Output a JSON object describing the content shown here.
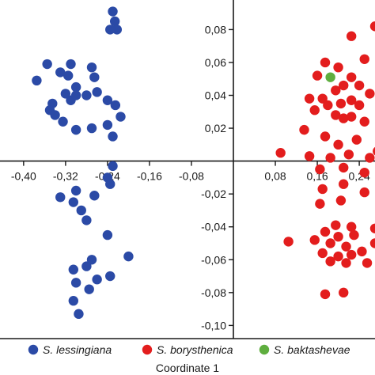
{
  "chart_data": {
    "type": "scatter",
    "title": "",
    "xlabel": "Coordinate 1",
    "ylabel": "",
    "xlim": [
      -0.445,
      0.27
    ],
    "ylim": [
      -0.108,
      0.098
    ],
    "grid": false,
    "legend_position": "bottom",
    "x_ticks": [
      -0.4,
      -0.32,
      -0.24,
      -0.16,
      -0.08,
      0.08,
      0.16,
      0.24
    ],
    "x_tick_labels": [
      "-0,40",
      "-0,32",
      "-0,24",
      "-0,16",
      "-0,08",
      "0,08",
      "0,16",
      "0,24"
    ],
    "y_ticks": [
      0.08,
      0.06,
      0.04,
      0.02,
      -0.02,
      -0.04,
      -0.06,
      -0.08,
      -0.1
    ],
    "y_tick_labels": [
      "0,08",
      "0,06",
      "0,04",
      "0,02",
      "-0,02",
      "-0,04",
      "-0,06",
      "-0,08",
      "-0,10"
    ],
    "series": [
      {
        "name": "S. lessingiana",
        "color": "#2b4aa6",
        "points": [
          [
            -0.23,
            0.091
          ],
          [
            -0.226,
            0.085
          ],
          [
            -0.222,
            0.08
          ],
          [
            -0.235,
            0.08
          ],
          [
            -0.355,
            0.059
          ],
          [
            -0.33,
            0.054
          ],
          [
            -0.31,
            0.059
          ],
          [
            -0.315,
            0.052
          ],
          [
            -0.3,
            0.045
          ],
          [
            -0.27,
            0.057
          ],
          [
            -0.265,
            0.051
          ],
          [
            -0.375,
            0.049
          ],
          [
            -0.28,
            0.04
          ],
          [
            -0.345,
            0.035
          ],
          [
            -0.32,
            0.041
          ],
          [
            -0.31,
            0.037
          ],
          [
            -0.3,
            0.04
          ],
          [
            -0.26,
            0.042
          ],
          [
            -0.24,
            0.037
          ],
          [
            -0.225,
            0.034
          ],
          [
            -0.35,
            0.031
          ],
          [
            -0.34,
            0.028
          ],
          [
            -0.325,
            0.024
          ],
          [
            -0.27,
            0.02
          ],
          [
            -0.24,
            0.022
          ],
          [
            -0.215,
            0.027
          ],
          [
            -0.3,
            0.019
          ],
          [
            -0.23,
            0.015
          ],
          [
            -0.23,
            -0.003
          ],
          [
            -0.24,
            -0.01
          ],
          [
            -0.235,
            -0.014
          ],
          [
            -0.3,
            -0.018
          ],
          [
            -0.33,
            -0.022
          ],
          [
            -0.305,
            -0.025
          ],
          [
            -0.265,
            -0.021
          ],
          [
            -0.29,
            -0.03
          ],
          [
            -0.28,
            -0.036
          ],
          [
            -0.24,
            -0.045
          ],
          [
            -0.27,
            -0.06
          ],
          [
            -0.28,
            -0.064
          ],
          [
            -0.2,
            -0.058
          ],
          [
            -0.305,
            -0.066
          ],
          [
            -0.26,
            -0.072
          ],
          [
            -0.3,
            -0.074
          ],
          [
            -0.275,
            -0.078
          ],
          [
            -0.305,
            -0.085
          ],
          [
            -0.295,
            -0.093
          ],
          [
            -0.235,
            -0.07
          ]
        ]
      },
      {
        "name": "S. borysthenica",
        "color": "#e31d1d",
        "points": [
          [
            0.27,
            0.082
          ],
          [
            0.225,
            0.076
          ],
          [
            0.25,
            0.062
          ],
          [
            0.175,
            0.06
          ],
          [
            0.2,
            0.057
          ],
          [
            0.28,
            0.052
          ],
          [
            0.225,
            0.051
          ],
          [
            0.16,
            0.052
          ],
          [
            0.24,
            0.046
          ],
          [
            0.21,
            0.046
          ],
          [
            0.195,
            0.043
          ],
          [
            0.17,
            0.038
          ],
          [
            0.26,
            0.041
          ],
          [
            0.145,
            0.038
          ],
          [
            0.18,
            0.034
          ],
          [
            0.205,
            0.035
          ],
          [
            0.225,
            0.037
          ],
          [
            0.24,
            0.034
          ],
          [
            0.155,
            0.031
          ],
          [
            0.195,
            0.028
          ],
          [
            0.21,
            0.026
          ],
          [
            0.225,
            0.027
          ],
          [
            0.25,
            0.024
          ],
          [
            0.28,
            0.026
          ],
          [
            0.135,
            0.019
          ],
          [
            0.175,
            0.015
          ],
          [
            0.235,
            0.013
          ],
          [
            0.2,
            0.01
          ],
          [
            0.275,
            0.006
          ],
          [
            0.09,
            0.005
          ],
          [
            0.145,
            0.003
          ],
          [
            0.185,
            0.002
          ],
          [
            0.22,
            0.004
          ],
          [
            0.26,
            0.002
          ],
          [
            0.165,
            -0.005
          ],
          [
            0.21,
            -0.004
          ],
          [
            0.25,
            -0.007
          ],
          [
            0.17,
            -0.017
          ],
          [
            0.21,
            -0.014
          ],
          [
            0.25,
            -0.019
          ],
          [
            0.165,
            -0.026
          ],
          [
            0.205,
            -0.024
          ],
          [
            0.195,
            -0.039
          ],
          [
            0.225,
            -0.04
          ],
          [
            0.27,
            -0.041
          ],
          [
            0.175,
            -0.043
          ],
          [
            0.2,
            -0.046
          ],
          [
            0.23,
            -0.045
          ],
          [
            0.155,
            -0.048
          ],
          [
            0.185,
            -0.05
          ],
          [
            0.215,
            -0.052
          ],
          [
            0.105,
            -0.049
          ],
          [
            0.27,
            -0.05
          ],
          [
            0.245,
            -0.055
          ],
          [
            0.17,
            -0.056
          ],
          [
            0.2,
            -0.058
          ],
          [
            0.225,
            -0.057
          ],
          [
            0.185,
            -0.061
          ],
          [
            0.215,
            -0.062
          ],
          [
            0.255,
            -0.062
          ],
          [
            0.175,
            -0.081
          ],
          [
            0.21,
            -0.08
          ]
        ]
      },
      {
        "name": "S. baktashevae",
        "color": "#5fae3f",
        "points": [
          [
            0.185,
            0.051
          ]
        ]
      }
    ]
  }
}
